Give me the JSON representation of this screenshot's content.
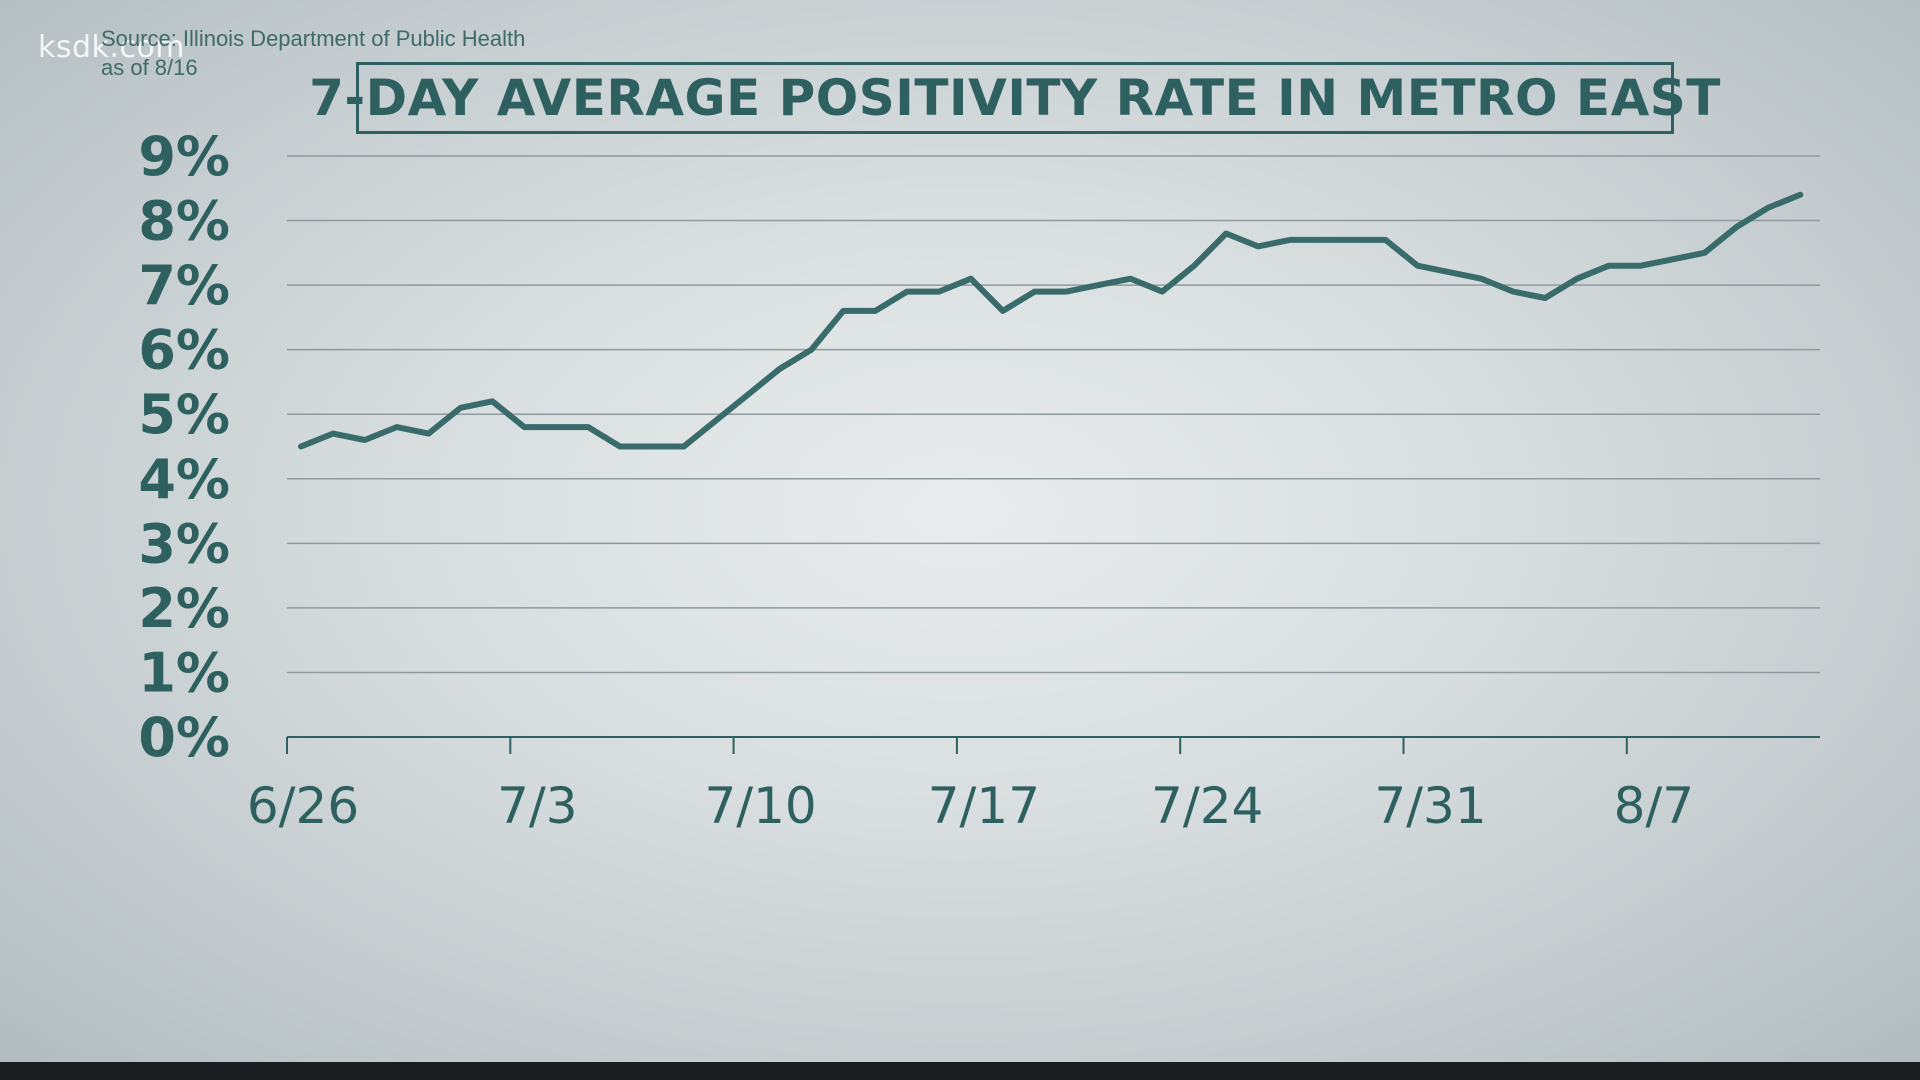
{
  "watermark": "ksdk.com",
  "source_line": "Source: Illinois Department of Public Health",
  "asof_line": "as of 8/16",
  "colors": {
    "line": "#3a6b6b",
    "grid": "#8e9a9e",
    "text": "#2f6060"
  },
  "chart_data": {
    "type": "line",
    "title": "7-DAY AVERAGE POSITIVITY RATE IN METRO EAST",
    "xlabel": "",
    "ylabel": "",
    "ylim": [
      0,
      9
    ],
    "yticks": [
      0,
      1,
      2,
      3,
      4,
      5,
      6,
      7,
      8,
      9
    ],
    "ytick_labels": [
      "0%",
      "1%",
      "2%",
      "3%",
      "4%",
      "5%",
      "6%",
      "7%",
      "8%",
      "9%"
    ],
    "xlim": [
      0,
      49
    ],
    "xtick_days": [
      0,
      7,
      14,
      21,
      28,
      35,
      42
    ],
    "xtick_labels": [
      "6/26",
      "7/3",
      "7/10",
      "7/17",
      "7/24",
      "7/31",
      "8/7"
    ],
    "grid": true,
    "series": [
      {
        "name": "7-day average positivity rate",
        "x": [
          0,
          1,
          2,
          3,
          4,
          5,
          6,
          7,
          8,
          9,
          10,
          11,
          12,
          13,
          14,
          15,
          16,
          17,
          18,
          19,
          20,
          21,
          22,
          23,
          24,
          25,
          26,
          27,
          28,
          29,
          30,
          31,
          32,
          33,
          34,
          35,
          36,
          37,
          38,
          39,
          40,
          41,
          42,
          43,
          44,
          45,
          46,
          47
        ],
        "values": [
          4.5,
          4.7,
          4.6,
          4.8,
          4.7,
          5.1,
          5.2,
          4.8,
          4.8,
          4.8,
          4.5,
          4.5,
          4.5,
          4.9,
          5.3,
          5.7,
          6.0,
          6.6,
          6.6,
          6.9,
          6.9,
          7.1,
          6.6,
          6.9,
          6.9,
          7.0,
          7.1,
          6.9,
          7.3,
          7.8,
          7.6,
          7.7,
          7.7,
          7.7,
          7.7,
          7.3,
          7.2,
          7.1,
          6.9,
          6.8,
          7.1,
          7.3,
          7.3,
          7.4,
          7.5,
          7.9,
          8.2,
          8.4
        ]
      }
    ]
  }
}
